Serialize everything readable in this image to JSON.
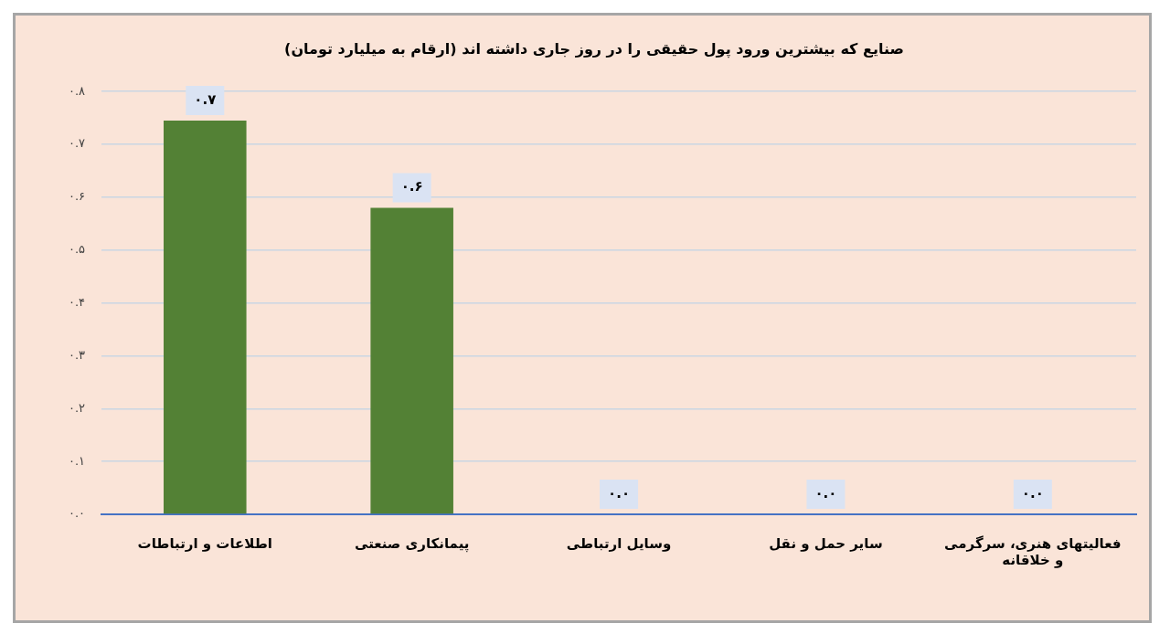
{
  "chart_data": {
    "type": "bar",
    "title": "صنایع که بیشترین ورود پول حقیقی را در روز جاری داشته اند (ارقام به میلیارد تومان)",
    "categories": [
      "اطلاعات و ارتباطات",
      "پیمانکاری صنعتی",
      "وسایل ارتباطی",
      "سایر حمل و نقل",
      "فعالیتهای هنری، سرگرمی و خلاقانه"
    ],
    "values": [
      0.745,
      0.58,
      0,
      0,
      0
    ],
    "value_labels": [
      "۰.۷",
      "۰.۶",
      "۰.۰",
      "۰.۰",
      "۰.۰"
    ],
    "color": "#538135",
    "ylim": [
      0,
      0.8
    ],
    "yticks": [
      {
        "value": 0,
        "label": "۰.۰"
      },
      {
        "value": 0.1,
        "label": "۰.۱"
      },
      {
        "value": 0.2,
        "label": "۰.۲"
      },
      {
        "value": 0.3,
        "label": "۰.۳"
      },
      {
        "value": 0.4,
        "label": "۰.۴"
      },
      {
        "value": 0.5,
        "label": "۰.۵"
      },
      {
        "value": 0.6,
        "label": "۰.۶"
      },
      {
        "value": 0.7,
        "label": "۰.۷"
      },
      {
        "value": 0.8,
        "label": "۰.۸"
      }
    ],
    "grid": "y"
  }
}
